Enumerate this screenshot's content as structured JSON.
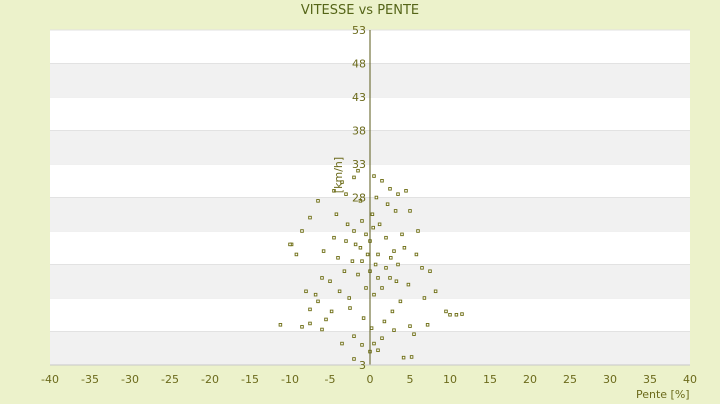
{
  "chart_data": {
    "type": "scatter",
    "title": "VITESSE vs PENTE",
    "xlabel": "Pente [%]",
    "ylabel": "[km/h]",
    "xlim": [
      -40,
      40
    ],
    "ylim": [
      3,
      53
    ],
    "x_ticks": [
      -40,
      -35,
      -30,
      -25,
      -20,
      -15,
      -10,
      -5,
      0,
      5,
      10,
      15,
      20,
      25,
      30,
      35,
      40
    ],
    "y_ticks": [
      3,
      8,
      13,
      18,
      23,
      28,
      33,
      38,
      43,
      48,
      53
    ],
    "y_tick_labels": [
      "3",
      "",
      "",
      "",
      "",
      "28",
      "33",
      "38",
      "43",
      "48",
      "53"
    ],
    "grid": "horizontal alternating bands",
    "colors": {
      "background": "#ecf2cb",
      "plot": "#ffffff",
      "band": "#f1f1f1",
      "point": "#6b6b10",
      "axis": "#5a5a1a"
    },
    "series": [
      {
        "points": [
          [
            -11.2,
            9.0
          ],
          [
            -8.5,
            8.7
          ],
          [
            -7.5,
            9.2
          ],
          [
            -6.0,
            8.3
          ],
          [
            -5.5,
            9.8
          ],
          [
            -3.5,
            6.2
          ],
          [
            -2.0,
            7.3
          ],
          [
            -1.0,
            6.0
          ],
          [
            0.5,
            6.2
          ],
          [
            1.5,
            7.0
          ],
          [
            3.0,
            8.2
          ],
          [
            5.0,
            8.8
          ],
          [
            5.5,
            7.6
          ],
          [
            7.2,
            9.0
          ],
          [
            4.2,
            4.1
          ],
          [
            -2.0,
            3.9
          ],
          [
            -7.5,
            11.3
          ],
          [
            -6.5,
            12.5
          ],
          [
            -8.0,
            14.0
          ],
          [
            -9.2,
            19.5
          ],
          [
            -9.8,
            21.0
          ],
          [
            -8.5,
            23.0
          ],
          [
            -7.5,
            25.0
          ],
          [
            -6.5,
            27.5
          ],
          [
            -5.8,
            20.0
          ],
          [
            -4.5,
            29.0
          ],
          [
            -3.5,
            30.3
          ],
          [
            -2.0,
            31.0
          ],
          [
            -1.5,
            32.0
          ],
          [
            0.5,
            31.2
          ],
          [
            1.5,
            30.5
          ],
          [
            2.5,
            29.3
          ],
          [
            3.5,
            28.5
          ],
          [
            4.5,
            29.0
          ],
          [
            5.0,
            26.0
          ],
          [
            6.0,
            23.0
          ],
          [
            7.5,
            17.0
          ],
          [
            8.2,
            14.0
          ],
          [
            9.5,
            11.0
          ],
          [
            10.0,
            10.5
          ],
          [
            10.8,
            10.5
          ],
          [
            11.5,
            10.6
          ],
          [
            -10.0,
            21.0
          ],
          [
            -6.0,
            16.0
          ],
          [
            -4.8,
            11.0
          ],
          [
            0.0,
            5.0
          ],
          [
            1.0,
            5.2
          ],
          [
            5.2,
            4.2
          ],
          [
            -3.0,
            28.5
          ],
          [
            -4.2,
            25.5
          ],
          [
            -2.8,
            24.0
          ],
          [
            -1.2,
            27.5
          ],
          [
            0.8,
            28.0
          ],
          [
            2.2,
            27.0
          ],
          [
            3.2,
            26.0
          ],
          [
            4.0,
            22.5
          ],
          [
            5.8,
            19.5
          ],
          [
            6.5,
            17.5
          ],
          [
            4.8,
            15.0
          ],
          [
            3.8,
            12.5
          ],
          [
            2.8,
            11.0
          ],
          [
            1.8,
            9.5
          ],
          [
            0.2,
            8.5
          ],
          [
            -0.8,
            10.0
          ],
          [
            -2.5,
            11.5
          ],
          [
            -3.8,
            14.0
          ],
          [
            -5.0,
            15.5
          ],
          [
            -4.0,
            19.0
          ],
          [
            -3.0,
            21.5
          ],
          [
            -2.0,
            23.0
          ],
          [
            -1.0,
            24.5
          ],
          [
            0.3,
            25.5
          ],
          [
            1.2,
            24.0
          ],
          [
            2.0,
            22.0
          ],
          [
            3.0,
            20.0
          ],
          [
            3.5,
            18.0
          ],
          [
            2.5,
            16.0
          ],
          [
            1.5,
            14.5
          ],
          [
            0.5,
            13.5
          ],
          [
            -0.5,
            14.5
          ],
          [
            -1.5,
            16.5
          ],
          [
            -2.2,
            18.5
          ],
          [
            -1.2,
            20.5
          ],
          [
            0.0,
            21.5
          ],
          [
            1.0,
            19.5
          ],
          [
            2.0,
            17.5
          ],
          [
            1.0,
            16.0
          ],
          [
            0.0,
            17.0
          ],
          [
            -1.0,
            18.5
          ],
          [
            -0.3,
            19.5
          ],
          [
            0.7,
            18.0
          ],
          [
            -0.5,
            22.5
          ],
          [
            0.4,
            23.5
          ],
          [
            -1.8,
            21.0
          ],
          [
            2.6,
            19.0
          ],
          [
            -2.6,
            13.0
          ],
          [
            -3.2,
            17.0
          ],
          [
            3.3,
            15.5
          ],
          [
            4.3,
            20.5
          ],
          [
            -4.5,
            22.0
          ],
          [
            6.8,
            13.0
          ],
          [
            -6.8,
            13.5
          ]
        ]
      }
    ]
  }
}
